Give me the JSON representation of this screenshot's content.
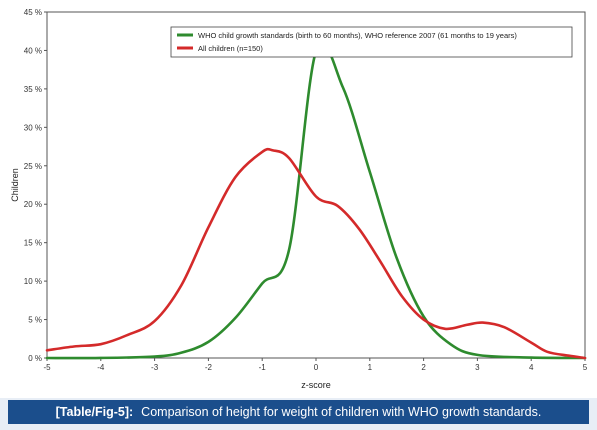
{
  "caption": {
    "label": "[Table/Fig-5]:",
    "text": "Comparison of height for weight of children with WHO growth standards."
  },
  "chart_data": {
    "type": "line",
    "xlabel": "z-score",
    "ylabel": "Children",
    "xlim": [
      -5,
      5
    ],
    "ylim": [
      0,
      45
    ],
    "x_ticks": [
      "-5",
      "-4",
      "-3",
      "-2",
      "-1",
      "0",
      "1",
      "2",
      "3",
      "4",
      "5"
    ],
    "y_ticks": [
      "0 %",
      "5 %",
      "10 %",
      "15 %",
      "20 %",
      "25 %",
      "30 %",
      "35 %",
      "40 %",
      "45 %"
    ],
    "grid": false,
    "legend_position": "top-right",
    "series": [
      {
        "name": "WHO child growth standards (birth to 60 months), WHO reference 2007 (61 months to 19 years)",
        "color": "#2e8b2e",
        "points": [
          [
            -5,
            0
          ],
          [
            -4,
            0.01
          ],
          [
            -3,
            0.18
          ],
          [
            -2.5,
            0.7
          ],
          [
            -2,
            2.1
          ],
          [
            -1.5,
            5.2
          ],
          [
            -1,
            9.7
          ],
          [
            -0.5,
            14.1
          ],
          [
            0,
            39.9
          ],
          [
            0.5,
            35.2
          ],
          [
            1,
            24.2
          ],
          [
            1.5,
            13.0
          ],
          [
            2,
            5.4
          ],
          [
            2.5,
            1.8
          ],
          [
            3,
            0.4
          ],
          [
            4,
            0.05
          ],
          [
            5,
            0
          ]
        ]
      },
      {
        "name": "All children (n=150)",
        "color": "#d42a2a",
        "points": [
          [
            -5,
            1.0
          ],
          [
            -4.5,
            1.5
          ],
          [
            -4,
            1.8
          ],
          [
            -3.5,
            3.0
          ],
          [
            -3,
            4.8
          ],
          [
            -2.5,
            9.5
          ],
          [
            -2,
            17.0
          ],
          [
            -1.5,
            23.5
          ],
          [
            -1,
            26.8
          ],
          [
            -0.8,
            27.0
          ],
          [
            -0.5,
            26.0
          ],
          [
            0,
            21.0
          ],
          [
            0.4,
            19.8
          ],
          [
            0.8,
            16.8
          ],
          [
            1.2,
            12.5
          ],
          [
            1.6,
            8.0
          ],
          [
            2,
            5.0
          ],
          [
            2.4,
            3.8
          ],
          [
            2.8,
            4.3
          ],
          [
            3.1,
            4.6
          ],
          [
            3.5,
            4.0
          ],
          [
            4,
            2.0
          ],
          [
            4.3,
            0.8
          ],
          [
            4.7,
            0.3
          ],
          [
            5,
            0.0
          ]
        ]
      }
    ]
  }
}
